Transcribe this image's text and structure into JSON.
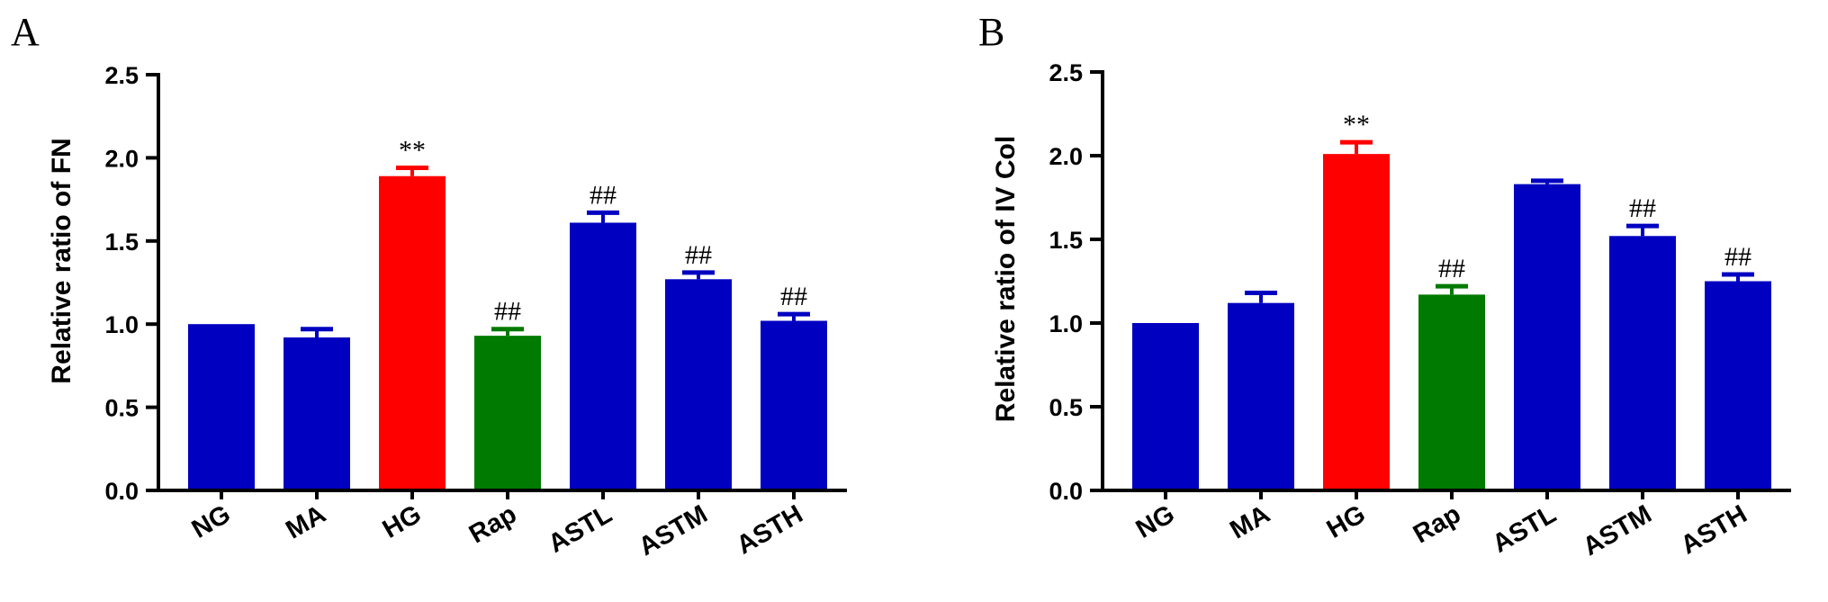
{
  "chart_data": [
    {
      "type": "bar",
      "panel": "A",
      "ylabel": "Relative ratio of FN",
      "ylim": [
        0,
        2.5
      ],
      "yticks": [
        "0.0",
        "0.5",
        "1.0",
        "1.5",
        "2.0",
        "2.5"
      ],
      "categories": [
        "NG",
        "MA",
        "HG",
        "Rap",
        "ASTL",
        "ASTM",
        "ASTH"
      ],
      "values": [
        1.0,
        0.92,
        1.89,
        0.93,
        1.61,
        1.27,
        1.02
      ],
      "errors": [
        0,
        0.05,
        0.05,
        0.04,
        0.06,
        0.04,
        0.04
      ],
      "colors": [
        "#0000c0",
        "#0000c0",
        "#ff0000",
        "#007a00",
        "#0000c0",
        "#0000c0",
        "#0000c0"
      ],
      "annotations": [
        "",
        "",
        "**",
        "##",
        "##",
        "##",
        "##"
      ]
    },
    {
      "type": "bar",
      "panel": "B",
      "ylabel": "Relative ratio of IV Col",
      "ylim": [
        0,
        2.5
      ],
      "yticks": [
        "0.0",
        "0.5",
        "1.0",
        "1.5",
        "2.0",
        "2.5"
      ],
      "categories": [
        "NG",
        "MA",
        "HG",
        "Rap",
        "ASTL",
        "ASTM",
        "ASTH"
      ],
      "values": [
        1.0,
        1.12,
        2.01,
        1.17,
        1.83,
        1.52,
        1.25
      ],
      "errors": [
        0,
        0.06,
        0.07,
        0.05,
        0.02,
        0.06,
        0.04
      ],
      "colors": [
        "#0000c0",
        "#0000c0",
        "#ff0000",
        "#007a00",
        "#0000c0",
        "#0000c0",
        "#0000c0"
      ],
      "annotations": [
        "",
        "",
        "**",
        "##",
        "",
        "##",
        "##"
      ]
    }
  ]
}
